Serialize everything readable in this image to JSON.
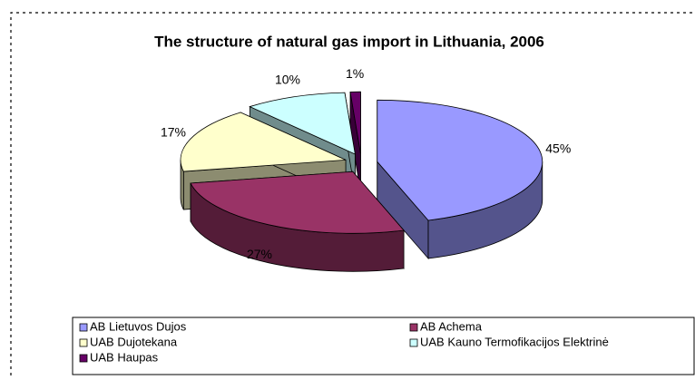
{
  "chart_data": {
    "type": "pie3d",
    "title": "The structure of natural gas import in Lithuania, 2006",
    "categories": [
      "AB Lietuvos Dujos",
      "AB Achema",
      "UAB Dujotekana",
      "UAB Kauno Termofikacijos Elektrinė",
      "UAB Haupas"
    ],
    "values": [
      45,
      27,
      17,
      10,
      1
    ],
    "value_labels": [
      "45%",
      "27%",
      "17%",
      "10%",
      "1%"
    ],
    "colors": [
      "#9999ff",
      "#993366",
      "#ffffcc",
      "#ccffff",
      "#660066"
    ],
    "legend": "bottom"
  }
}
